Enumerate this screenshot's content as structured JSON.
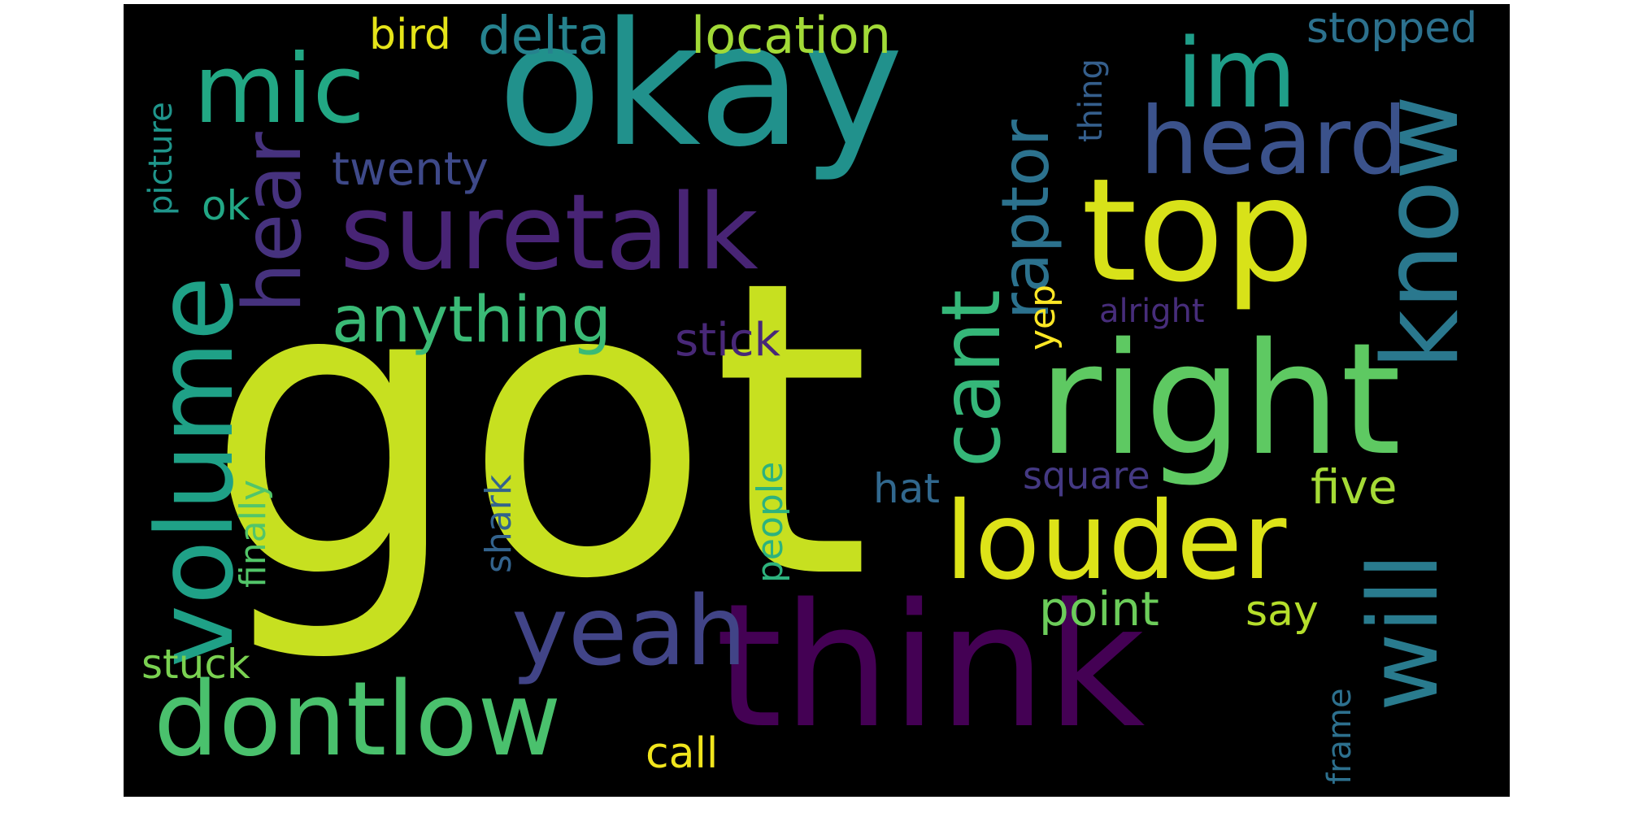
{
  "colors": {
    "background": "#000000",
    "page": "#ffffff"
  },
  "words": [
    {
      "id": "got",
      "text": "got",
      "color": "#c7e020"
    },
    {
      "id": "think",
      "text": "think",
      "color": "#440154"
    },
    {
      "id": "okay",
      "text": "okay",
      "color": "#21918c"
    },
    {
      "id": "right",
      "text": "right",
      "color": "#5ec962"
    },
    {
      "id": "top",
      "text": "top",
      "color": "#d8e219"
    },
    {
      "id": "suretalk",
      "text": "suretalk",
      "color": "#482475"
    },
    {
      "id": "dontlow",
      "text": "dontlow",
      "color": "#4ac16d"
    },
    {
      "id": "louder",
      "text": "louder",
      "color": "#dde318"
    },
    {
      "id": "volume",
      "text": "volume",
      "color": "#1fa187"
    },
    {
      "id": "know",
      "text": "know",
      "color": "#2a788e"
    },
    {
      "id": "will",
      "text": "will",
      "color": "#297b8e"
    },
    {
      "id": "hear",
      "text": "hear",
      "color": "#46327e"
    },
    {
      "id": "heard",
      "text": "heard",
      "color": "#3b528b"
    },
    {
      "id": "mic",
      "text": "mic",
      "color": "#22a884"
    },
    {
      "id": "im",
      "text": "im",
      "color": "#1f9e89"
    },
    {
      "id": "yeah",
      "text": "yeah",
      "color": "#414487"
    },
    {
      "id": "cant",
      "text": "cant",
      "color": "#35b779"
    },
    {
      "id": "raptor",
      "text": "raptor",
      "color": "#2c728e"
    },
    {
      "id": "anything",
      "text": "anything",
      "color": "#3aba76"
    },
    {
      "id": "location",
      "text": "location",
      "color": "#a2da37"
    },
    {
      "id": "delta",
      "text": "delta",
      "color": "#26828e"
    },
    {
      "id": "twenty",
      "text": "twenty",
      "color": "#3e4989"
    },
    {
      "id": "stopped",
      "text": "stopped",
      "color": "#2c718e"
    },
    {
      "id": "finally",
      "text": "finally",
      "color": "#52c569"
    },
    {
      "id": "bird",
      "text": "bird",
      "color": "#e5e419"
    },
    {
      "id": "picture",
      "text": "picture",
      "color": "#1f958b"
    },
    {
      "id": "ok",
      "text": "ok",
      "color": "#22a785"
    },
    {
      "id": "stick",
      "text": "stick",
      "color": "#482878"
    },
    {
      "id": "point",
      "text": "point",
      "color": "#6ccd5a"
    },
    {
      "id": "five",
      "text": "five",
      "color": "#a5db36"
    },
    {
      "id": "square",
      "text": "square",
      "color": "#443983"
    },
    {
      "id": "stuck",
      "text": "stuck",
      "color": "#7ad151"
    },
    {
      "id": "say",
      "text": "say",
      "color": "#b5de2b"
    },
    {
      "id": "call",
      "text": "call",
      "color": "#f1e51d"
    },
    {
      "id": "hat",
      "text": "hat",
      "color": "#31688e"
    },
    {
      "id": "people",
      "text": "people",
      "color": "#2db27d"
    },
    {
      "id": "shark",
      "text": "shark",
      "color": "#33638d"
    },
    {
      "id": "frame",
      "text": "frame",
      "color": "#2d708e"
    },
    {
      "id": "thing",
      "text": "thing",
      "color": "#355f8d"
    },
    {
      "id": "yep",
      "text": "yep",
      "color": "#fde725"
    },
    {
      "id": "alright",
      "text": "alright",
      "color": "#472d7b"
    }
  ]
}
